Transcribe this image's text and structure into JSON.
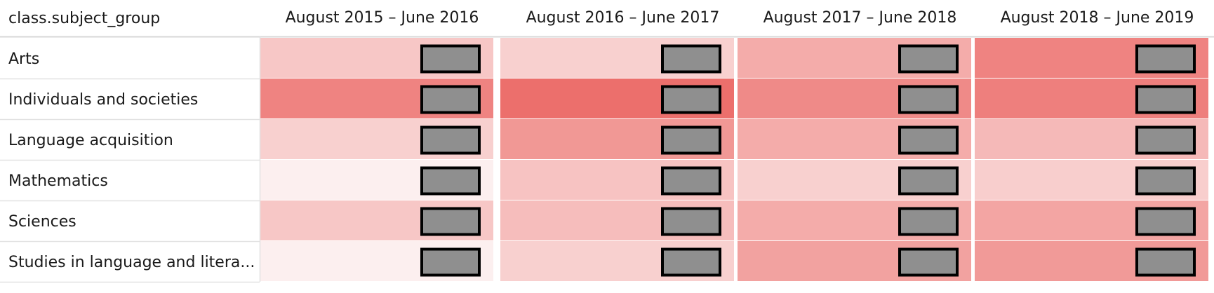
{
  "chart_data": {
    "type": "heatmap",
    "row_header": "class.subject_group",
    "columns": [
      "August 2015 – June 2016",
      "August 2016 – June 2017",
      "August 2017 – June 2018",
      "August 2018 – June 2019"
    ],
    "rows": [
      "Arts",
      "Individuals and societies",
      "Language acquisition",
      "Mathematics",
      "Sciences",
      "Studies in language and litera..."
    ],
    "intensity": [
      [
        0.35,
        0.28,
        0.55,
        0.85
      ],
      [
        0.85,
        1.0,
        0.8,
        0.88
      ],
      [
        0.28,
        0.7,
        0.55,
        0.45
      ],
      [
        0.05,
        0.38,
        0.28,
        0.3
      ],
      [
        0.35,
        0.42,
        0.55,
        0.6
      ],
      [
        0.05,
        0.28,
        0.62,
        0.68
      ]
    ],
    "cell_values_masked": true,
    "color_scale": [
      "#fdf6f6",
      "#ec6f6c"
    ],
    "grid": false
  }
}
